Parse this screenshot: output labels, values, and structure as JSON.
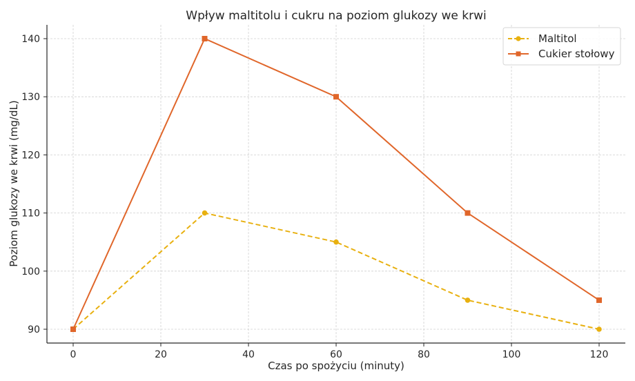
{
  "chart_data": {
    "type": "line",
    "title": "Wpływ maltitolu i cukru na poziom glukozy we krwi",
    "xlabel": "Czas po spożyciu (minuty)",
    "ylabel": "Poziom glukozy we krwi (mg/dL)",
    "x": [
      0,
      30,
      60,
      90,
      120
    ],
    "series": [
      {
        "name": "Maltitol",
        "values": [
          90,
          110,
          105,
          95,
          90
        ],
        "color": "#E8B00F",
        "linestyle": "dashed",
        "marker": "circle"
      },
      {
        "name": "Cukier stołowy",
        "values": [
          90,
          140,
          130,
          110,
          95
        ],
        "color": "#E0662A",
        "linestyle": "solid",
        "marker": "square"
      }
    ],
    "xticks": [
      0,
      20,
      40,
      60,
      80,
      100,
      120
    ],
    "yticks": [
      90,
      100,
      110,
      120,
      130,
      140
    ],
    "xlim": [
      -6,
      126
    ],
    "ylim": [
      87.5,
      142.5
    ],
    "grid": true,
    "legend_position": "upper right"
  },
  "legend": {
    "items": [
      {
        "label": "Maltitol"
      },
      {
        "label": "Cukier stołowy"
      }
    ]
  }
}
